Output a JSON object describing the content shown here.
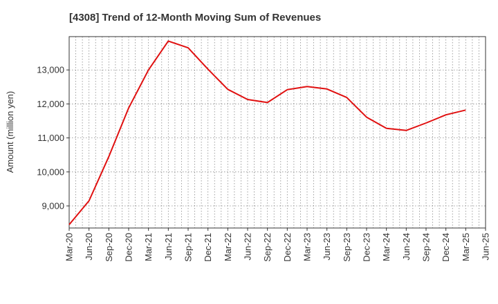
{
  "chart_data": {
    "type": "line",
    "title": "[4308]  Trend of 12-Month Moving Sum of Revenues",
    "xlabel": "",
    "ylabel": "Amount (million yen)",
    "x_tick_labels": [
      "Mar-20",
      "Jun-20",
      "Sep-20",
      "Dec-20",
      "Mar-21",
      "Jun-21",
      "Sep-21",
      "Dec-21",
      "Mar-22",
      "Jun-22",
      "Sep-22",
      "Dec-22",
      "Mar-23",
      "Jun-23",
      "Sep-23",
      "Dec-23",
      "Mar-24",
      "Jun-24",
      "Sep-24",
      "Dec-24",
      "Mar-25",
      "Jun-25"
    ],
    "y_ticks": [
      9000,
      10000,
      11000,
      12000,
      13000
    ],
    "y_tick_labels": [
      "9,000",
      "10,000",
      "11,000",
      "12,000",
      "13,000"
    ],
    "ylim": [
      8350,
      13980
    ],
    "grid": true,
    "line_color": "#e01010",
    "series": [
      {
        "x": [
          "Mar-20",
          "Jun-20",
          "Sep-20",
          "Dec-20",
          "Mar-21",
          "Jun-21",
          "Sep-21",
          "Dec-21",
          "Mar-22",
          "Jun-22",
          "Sep-22",
          "Dec-22",
          "Mar-23",
          "Jun-23",
          "Sep-23",
          "Dec-23",
          "Mar-24",
          "Jun-24",
          "Sep-24",
          "Dec-24",
          "Mar-25"
        ],
        "values": [
          8450,
          9150,
          10450,
          11880,
          13000,
          13850,
          13650,
          13020,
          12430,
          12130,
          12040,
          12420,
          12510,
          12440,
          12190,
          11610,
          11280,
          11220,
          11440,
          11680,
          11820
        ]
      }
    ]
  }
}
